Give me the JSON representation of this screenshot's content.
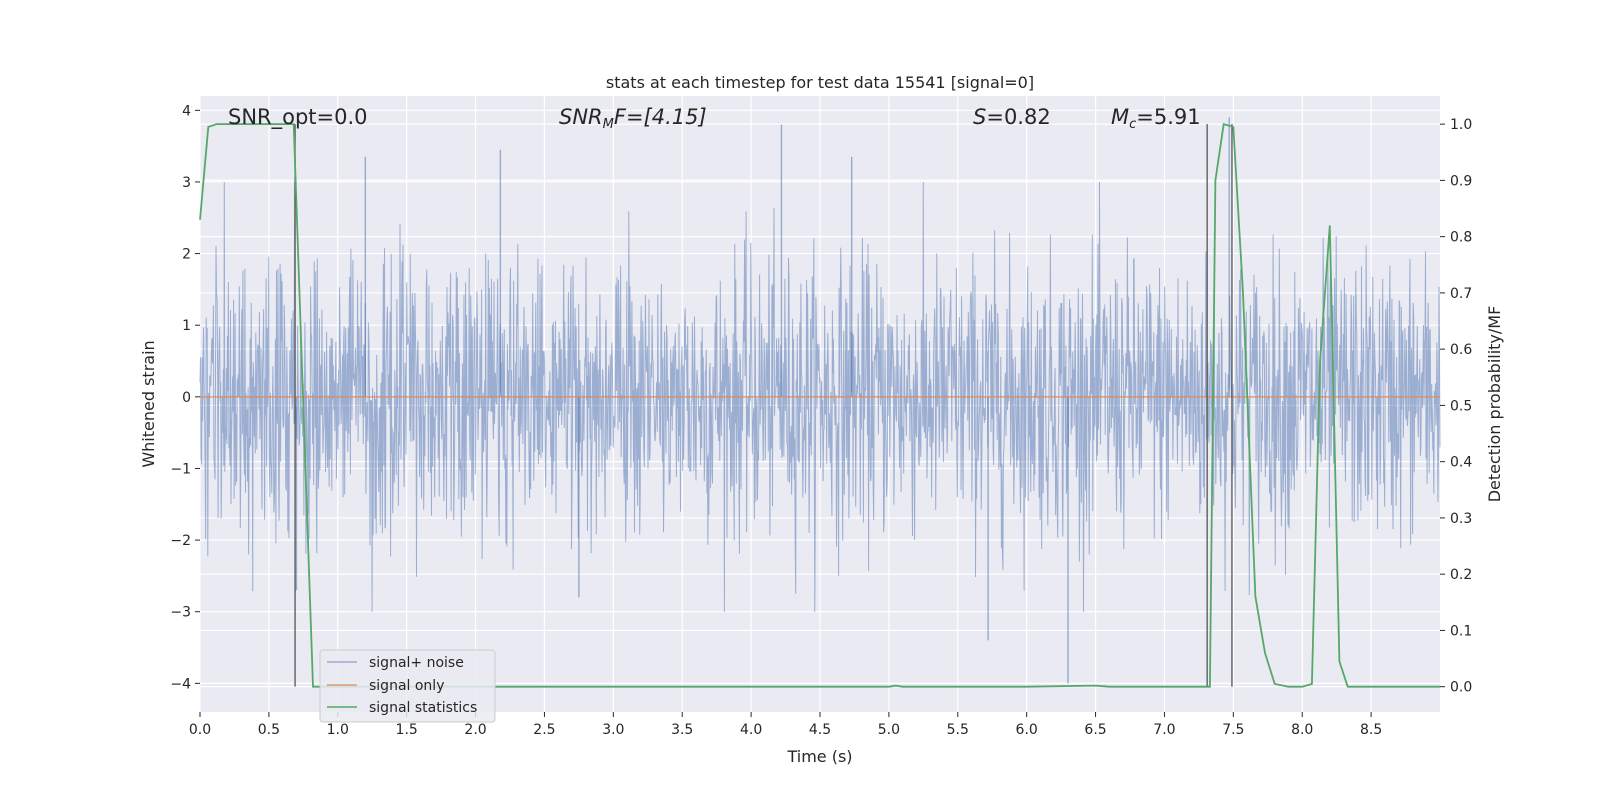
{
  "chart_data": {
    "type": "line",
    "title": "stats at each timestep for test data 15541 [signal=0]",
    "xlabel": "Time (s)",
    "ylabel": "Whitened strain",
    "ylabel_right": "Detection probability/MF",
    "xlim": [
      0,
      9
    ],
    "ylim": [
      -4.4,
      4.2
    ],
    "ylim_right": [
      -0.045,
      1.05
    ],
    "x_ticks": [
      "0.0",
      "0.5",
      "1.0",
      "1.5",
      "2.0",
      "2.5",
      "3.0",
      "3.5",
      "4.0",
      "4.5",
      "5.0",
      "5.5",
      "6.0",
      "6.5",
      "7.0",
      "7.5",
      "8.0",
      "8.5"
    ],
    "y_ticks": [
      "4",
      "3",
      "2",
      "1",
      "0",
      "−1",
      "−2",
      "−3",
      "−4"
    ],
    "y_ticks_right": [
      "1.0",
      "0.9",
      "0.8",
      "0.7",
      "0.6",
      "0.5",
      "0.4",
      "0.3",
      "0.2",
      "0.1",
      "0.0"
    ],
    "grid": true,
    "legend_position": "lower-left",
    "annotations": {
      "snr_opt": "SNR_opt=0.0",
      "snr_mf_main": "SNR",
      "snr_mf_sub": "M",
      "snr_mf_rest": "F=[4.15]",
      "s_main": "S",
      "s_rest": "=0.82",
      "mc_main": "M",
      "mc_sub": "c",
      "mc_rest": "=5.91"
    },
    "series": [
      {
        "name": "signal+ noise",
        "color": "#4c72b0",
        "style": "dense whitened noise, mostly within ±1.8 with spikes",
        "spikes": [
          {
            "x": 1.2,
            "y": 3.35
          },
          {
            "x": 2.18,
            "y": 3.45
          },
          {
            "x": 4.22,
            "y": 3.8
          },
          {
            "x": 4.73,
            "y": 3.35
          },
          {
            "x": 5.72,
            "y": -3.4
          },
          {
            "x": 6.3,
            "y": -4.0
          },
          {
            "x": 7.47,
            "y": 3.9
          },
          {
            "x": 2.75,
            "y": -2.8
          },
          {
            "x": 0.7,
            "y": -2.7
          }
        ]
      },
      {
        "name": "signal only",
        "color": "#dd8452",
        "x": [
          0,
          9
        ],
        "y": [
          0,
          0
        ]
      },
      {
        "name": "signal statistics",
        "color": "#55a868",
        "axis": "right",
        "x": [
          0,
          0.06,
          0.12,
          0.2,
          0.3,
          0.4,
          0.5,
          0.6,
          0.68,
          0.75,
          0.82,
          1.0,
          2.0,
          3.0,
          4.0,
          5.0,
          5.05,
          5.1,
          6.0,
          6.5,
          6.6,
          7.0,
          7.3,
          7.33,
          7.37,
          7.43,
          7.5,
          7.57,
          7.66,
          7.73,
          7.8,
          7.9,
          8.0,
          8.07,
          8.13,
          8.2,
          8.27,
          8.33,
          8.5,
          9.0
        ],
        "y": [
          0.83,
          0.995,
          1.0,
          1.0,
          1.0,
          1.0,
          1.0,
          1.0,
          1.0,
          0.5,
          0.0,
          0.0,
          0.0,
          0.0,
          0.0,
          0.0,
          0.002,
          0.0,
          0.0,
          0.002,
          0.0,
          0.0,
          0.0,
          0.0,
          0.9,
          1.0,
          0.995,
          0.7,
          0.16,
          0.06,
          0.005,
          0.0,
          0.0,
          0.005,
          0.58,
          0.82,
          0.045,
          0.0,
          0.0,
          0.0
        ]
      }
    ],
    "vertical_lines": [
      0.69,
      7.31,
      7.49
    ]
  }
}
